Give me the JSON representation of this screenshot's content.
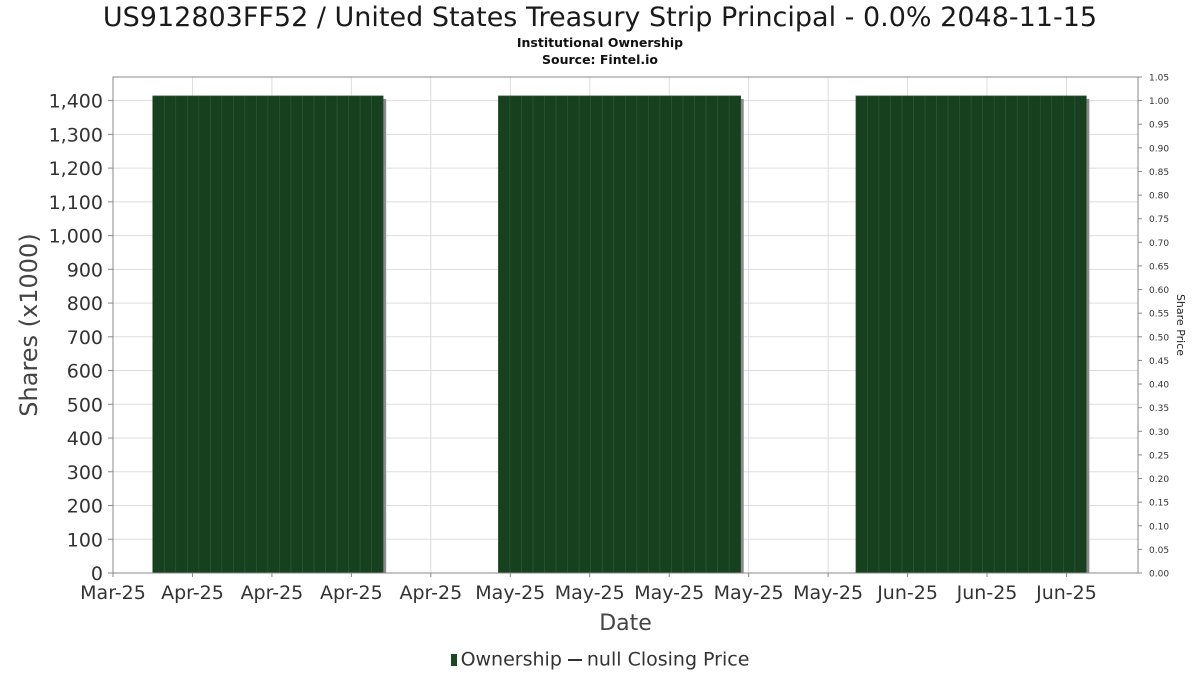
{
  "title": "US912803FF52 / United States Treasury Strip Principal - 0.0% 2048-11-15",
  "subtitle1": "Institutional Ownership",
  "subtitle2": "Source: Fintel.io",
  "legend": {
    "ownership": "Ownership",
    "price": "null Closing Price"
  },
  "colors": {
    "bar": "#17401f",
    "bar_edge": "#2c5a35",
    "shadow": "#8a8a8a",
    "grid": "#dddddd"
  },
  "chart_data": {
    "type": "bar",
    "title": "US912803FF52 / United States Treasury Strip Principal - 0.0% 2048-11-15",
    "xlabel": "Date",
    "ylabel": "Shares (x1000)",
    "y2label": "Share Price",
    "x_tick_labels": [
      "Mar-25",
      "Apr-25",
      "Apr-25",
      "Apr-25",
      "Apr-25",
      "May-25",
      "May-25",
      "May-25",
      "May-25",
      "May-25",
      "Jun-25",
      "Jun-25",
      "Jun-25"
    ],
    "ylim": [
      0,
      1470
    ],
    "y_ticks": [
      0,
      100,
      200,
      300,
      400,
      500,
      600,
      700,
      800,
      900,
      1000,
      1100,
      1200,
      1300,
      1400
    ],
    "y2lim": [
      0,
      1.05
    ],
    "y2_ticks": [
      "0.00",
      "0.05",
      "0.10",
      "0.15",
      "0.20",
      "0.25",
      "0.30",
      "0.35",
      "0.40",
      "0.45",
      "0.50",
      "0.55",
      "0.60",
      "0.65",
      "0.70",
      "0.75",
      "0.80",
      "0.85",
      "0.90",
      "0.95",
      "1.00",
      "1.05"
    ],
    "x_range": [
      0,
      12.9
    ],
    "grid": true,
    "legend_position": "bottom",
    "series": [
      {
        "name": "Ownership",
        "blocks": [
          {
            "x_start": 0.5,
            "x_end": 3.4,
            "days": 20,
            "value": 1414
          },
          {
            "x_start": 4.85,
            "x_end": 7.9,
            "days": 21,
            "value": 1414
          },
          {
            "x_start": 9.35,
            "x_end": 12.25,
            "days": 20,
            "value": 1414
          }
        ]
      }
    ]
  }
}
